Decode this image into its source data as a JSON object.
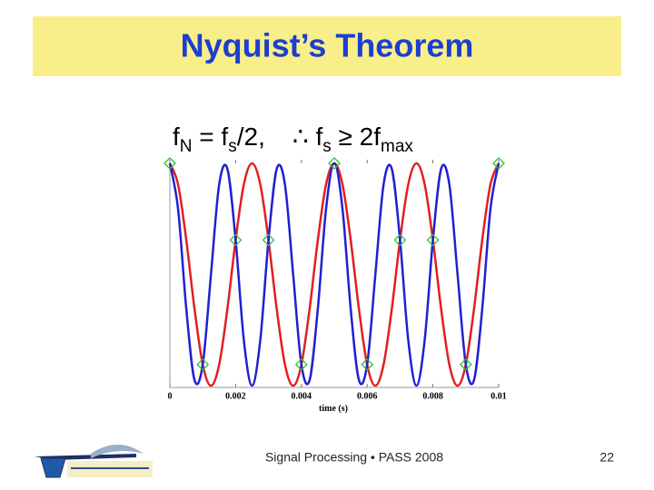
{
  "slide": {
    "title": "Nyquist’s Theorem",
    "formula": {
      "parts": [
        "f",
        "N",
        " = f",
        "s",
        "/2,",
        "∴ f",
        "s",
        " ≥ 2f",
        "max"
      ]
    },
    "footer": "Signal Processing • PASS 2008",
    "page_number": "22"
  },
  "chart_data": {
    "type": "line",
    "xlabel": "time (s)",
    "x": [
      0,
      0.00025,
      0.0005,
      0.00075,
      0.001,
      0.00125,
      0.0015,
      0.00175,
      0.002,
      0.00225,
      0.0025,
      0.00275,
      0.003,
      0.00325,
      0.0035,
      0.00375,
      0.004,
      0.00425,
      0.0045,
      0.00475,
      0.005,
      0.00525,
      0.0055,
      0.00575,
      0.006,
      0.00625,
      0.0065,
      0.00675,
      0.007,
      0.00725,
      0.0075,
      0.00775,
      0.008,
      0.00825,
      0.0085,
      0.00875,
      0.009,
      0.00925,
      0.0095,
      0.00975,
      0.01
    ],
    "series": [
      {
        "color": "#e02020",
        "values": [
          1,
          0.81,
          0.31,
          -0.31,
          -0.81,
          -1,
          -0.81,
          -0.31,
          0.31,
          0.81,
          1,
          0.81,
          0.31,
          -0.31,
          -0.81,
          -1,
          -0.81,
          -0.31,
          0.31,
          0.81,
          1,
          0.81,
          0.31,
          -0.31,
          -0.81,
          -1,
          -0.81,
          -0.31,
          0.31,
          0.81,
          1,
          0.81,
          0.31,
          -0.31,
          -0.81,
          -1,
          -0.81,
          -0.31,
          0.31,
          0.81,
          1
        ]
      },
      {
        "color": "#2020d0",
        "values": [
          1,
          0.59,
          -0.31,
          -0.95,
          -0.81,
          0,
          0.81,
          0.95,
          0.31,
          -0.59,
          -1,
          -0.59,
          0.31,
          0.95,
          0.81,
          0,
          -0.81,
          -0.95,
          -0.31,
          0.59,
          1,
          0.59,
          -0.31,
          -0.95,
          -0.81,
          0,
          0.81,
          0.95,
          0.31,
          -0.59,
          -1,
          -0.59,
          0.31,
          0.95,
          0.81,
          0,
          -0.81,
          -0.95,
          -0.31,
          0.59,
          1
        ]
      }
    ],
    "samples": {
      "color": "#30c030",
      "x": [
        0,
        0.001,
        0.002,
        0.003,
        0.004,
        0.005,
        0.006,
        0.007,
        0.008,
        0.009,
        0.01
      ],
      "values": [
        1,
        -0.81,
        0.31,
        0.31,
        -0.81,
        1,
        -0.81,
        0.31,
        0.31,
        -0.81,
        1
      ]
    },
    "xlim": [
      0,
      0.01
    ],
    "ylim": [
      -1,
      1
    ],
    "xticks": [
      0,
      0.002,
      0.004,
      0.006,
      0.008,
      0.01
    ]
  }
}
